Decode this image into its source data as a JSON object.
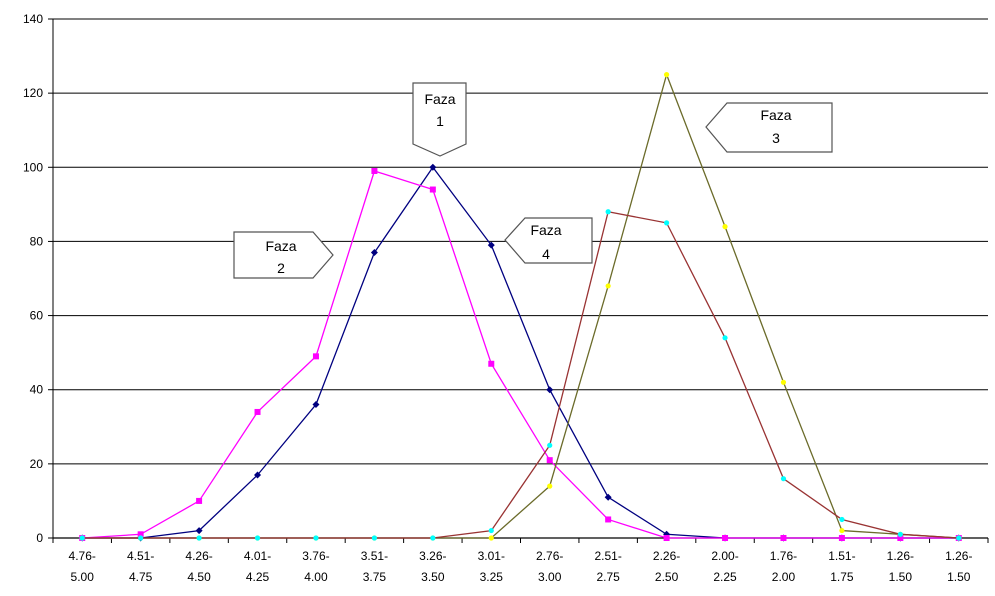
{
  "chart_data": {
    "type": "line",
    "title": "",
    "xlabel": "",
    "ylabel": "",
    "ylim": [
      0,
      140
    ],
    "yticks": [
      0,
      20,
      40,
      60,
      80,
      100,
      120,
      140
    ],
    "grid": "horizontal",
    "categories": [
      [
        "4.76-",
        "5.00"
      ],
      [
        "4.51-",
        "4.75"
      ],
      [
        "4.26-",
        "4.50"
      ],
      [
        "4.01-",
        "4.25"
      ],
      [
        "3.76-",
        "4.00"
      ],
      [
        "3.51-",
        "3.75"
      ],
      [
        "3.26-",
        "3.50"
      ],
      [
        "3.01-",
        "3.25"
      ],
      [
        "2.76-",
        "3.00"
      ],
      [
        "2.51-",
        "2.75"
      ],
      [
        "2.26-",
        "2.50"
      ],
      [
        "2.00-",
        "2.25"
      ],
      [
        "1.76-",
        "2.00"
      ],
      [
        "1.51-",
        "1.75"
      ],
      [
        "1.26-",
        "1.50"
      ],
      [
        "1.26-",
        "1.50"
      ]
    ],
    "series": [
      {
        "name": "Faza 1",
        "color": "#000080",
        "marker": "diamond",
        "markerColor": "#000080",
        "values": [
          0,
          0,
          2,
          17,
          36,
          77,
          100,
          79,
          40,
          11,
          1,
          0,
          0,
          0,
          0,
          0
        ]
      },
      {
        "name": "Faza 2",
        "color": "#ff00ff",
        "marker": "square",
        "markerColor": "#ff00ff",
        "values": [
          0,
          1,
          10,
          34,
          49,
          99,
          94,
          47,
          21,
          5,
          0,
          0,
          0,
          0,
          0,
          0
        ]
      },
      {
        "name": "Faza 3",
        "color": "#6b6b2a",
        "marker": "circle",
        "markerColor": "#ffff00",
        "values": [
          0,
          0,
          0,
          0,
          0,
          0,
          0,
          0,
          14,
          68,
          125,
          84,
          42,
          2,
          1,
          0
        ]
      },
      {
        "name": "Faza 4",
        "color": "#993333",
        "marker": "circle",
        "markerColor": "#00ffff",
        "values": [
          0,
          0,
          0,
          0,
          0,
          0,
          0,
          2,
          25,
          88,
          85,
          54,
          16,
          5,
          1,
          0
        ]
      }
    ],
    "annotations": [
      {
        "id": "faza1",
        "lines": [
          "Faza",
          "1"
        ],
        "pointer": "down"
      },
      {
        "id": "faza2",
        "lines": [
          "Faza",
          "2"
        ],
        "pointer": "right"
      },
      {
        "id": "faza3",
        "lines": [
          "Faza",
          "3"
        ],
        "pointer": "left"
      },
      {
        "id": "faza4",
        "lines": [
          "Faza",
          "4"
        ],
        "pointer": "left"
      }
    ]
  }
}
